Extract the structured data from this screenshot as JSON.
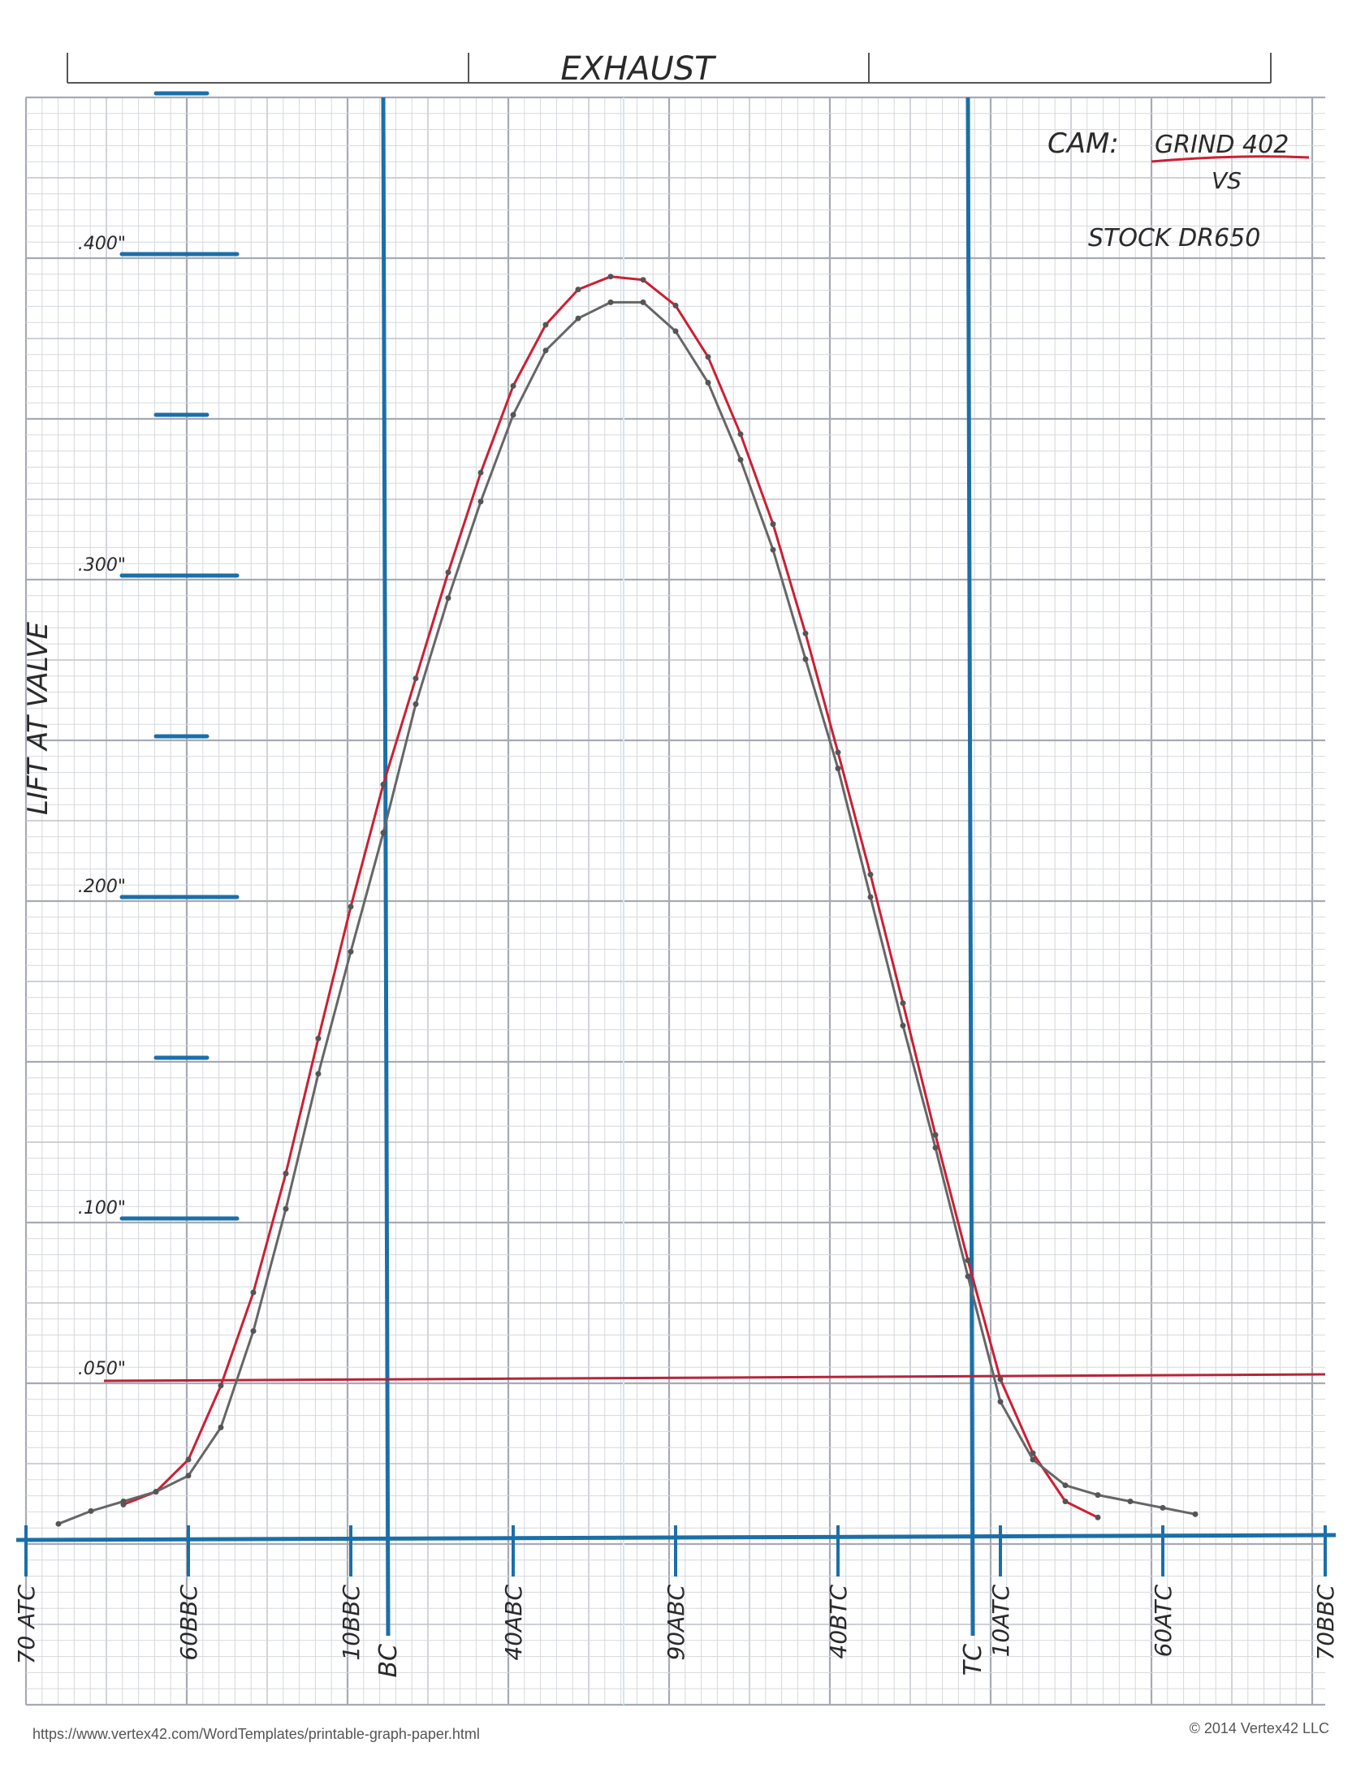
{
  "chart_data": {
    "type": "line",
    "title": "EXHAUST",
    "ylabel": "LIFT AT VALVE",
    "y_ticks": [
      {
        "value": 0.4,
        "label": ".400\""
      },
      {
        "value": 0.3,
        "label": ".300\""
      },
      {
        "value": 0.2,
        "label": ".200\""
      },
      {
        "value": 0.1,
        "label": ".100\""
      },
      {
        "value": 0.05,
        "label": ".050\""
      }
    ],
    "ylim": [
      0,
      0.45
    ],
    "x_ticks": [
      {
        "pos": 0,
        "label": "70 ATC"
      },
      {
        "pos": 50,
        "label": "60BBC"
      },
      {
        "pos": 100,
        "label": "10BBC"
      },
      {
        "pos": 150,
        "label": "40ABC"
      },
      {
        "pos": 200,
        "label": "90ABC"
      },
      {
        "pos": 250,
        "label": "40BTC"
      },
      {
        "pos": 300,
        "label": "10ATC"
      },
      {
        "pos": 350,
        "label": "60ATC"
      },
      {
        "pos": 400,
        "label": "70BBC"
      }
    ],
    "xlim": [
      0,
      400
    ],
    "markers": [
      {
        "pos": 110,
        "label": "BC"
      },
      {
        "pos": 290,
        "label": "TC"
      }
    ],
    "threshold": {
      "value": 0.05,
      "label": ".050\""
    },
    "annotations": {
      "cam_label": "CAM:",
      "cam_name": "GRIND 402",
      "vs": "VS",
      "stock": "STOCK DR650"
    },
    "series": [
      {
        "name": "GRIND 402",
        "color": "#cc1f33",
        "x": [
          30,
          40,
          50,
          60,
          70,
          80,
          90,
          100,
          110,
          120,
          130,
          140,
          150,
          160,
          170,
          180,
          190,
          200,
          210,
          220,
          230,
          240,
          250,
          260,
          270,
          280,
          290,
          300,
          310,
          320,
          330
        ],
        "y": [
          0.011,
          0.015,
          0.025,
          0.048,
          0.077,
          0.114,
          0.156,
          0.197,
          0.235,
          0.268,
          0.301,
          0.332,
          0.359,
          0.378,
          0.389,
          0.393,
          0.392,
          0.384,
          0.368,
          0.344,
          0.316,
          0.282,
          0.245,
          0.207,
          0.167,
          0.126,
          0.087,
          0.05,
          0.027,
          0.012,
          0.007
        ]
      },
      {
        "name": "STOCK DR650",
        "color": "#666666",
        "x": [
          10,
          20,
          30,
          40,
          50,
          60,
          70,
          80,
          90,
          100,
          110,
          120,
          130,
          140,
          150,
          160,
          170,
          180,
          190,
          200,
          210,
          220,
          230,
          240,
          250,
          260,
          270,
          280,
          290,
          300,
          310,
          320,
          330,
          340,
          350,
          360
        ],
        "y": [
          0.005,
          0.009,
          0.012,
          0.015,
          0.02,
          0.035,
          0.065,
          0.103,
          0.145,
          0.183,
          0.22,
          0.26,
          0.293,
          0.323,
          0.35,
          0.37,
          0.38,
          0.385,
          0.385,
          0.376,
          0.36,
          0.336,
          0.308,
          0.274,
          0.24,
          0.2,
          0.16,
          0.122,
          0.082,
          0.043,
          0.025,
          0.017,
          0.014,
          0.012,
          0.01,
          0.008
        ]
      }
    ]
  },
  "footer": {
    "url": "https://www.vertex42.com/WordTemplates/printable-graph-paper.html",
    "copyright": "© 2014 Vertex42 LLC"
  }
}
